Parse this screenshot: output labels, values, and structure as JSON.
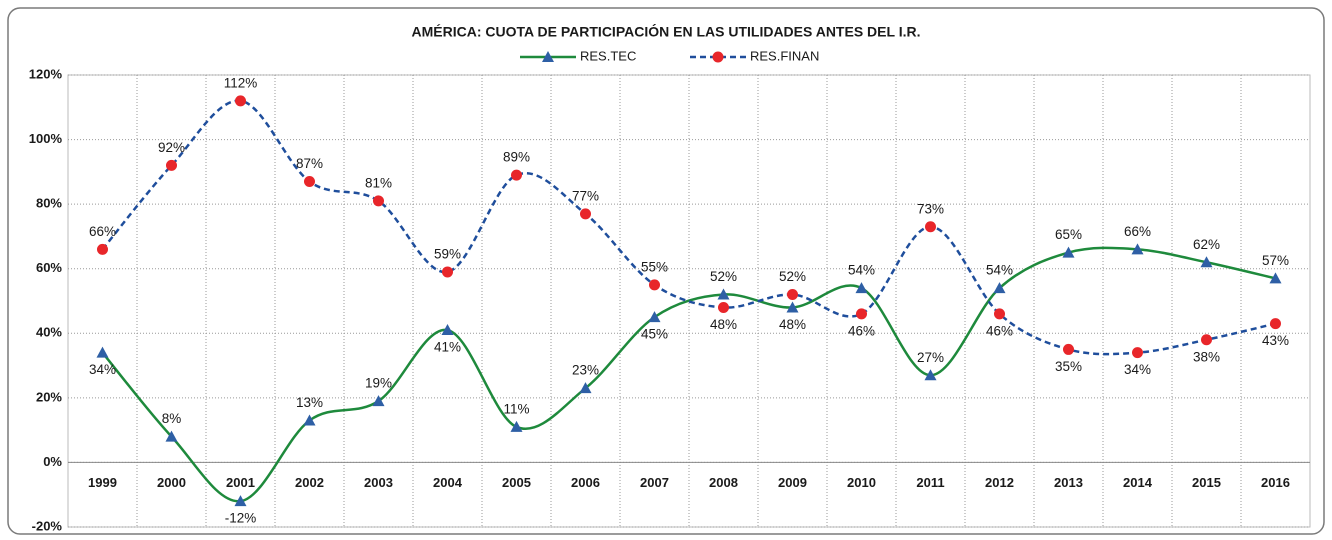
{
  "chart_data": {
    "type": "line",
    "title": "AMÉRICA: CUOTA DE PARTICIPACIÓN EN LAS UTILIDADES ANTES DEL I.R.",
    "categories": [
      "1999",
      "2000",
      "2001",
      "2002",
      "2003",
      "2004",
      "2005",
      "2006",
      "2007",
      "2008",
      "2009",
      "2010",
      "2011",
      "2012",
      "2013",
      "2014",
      "2015",
      "2016"
    ],
    "series": [
      {
        "name": "RES.TEC",
        "color": "#1e8a3c",
        "marker_color": "#2e5fa5",
        "marker": "triangle",
        "dashed": false,
        "values": [
          34,
          8,
          -12,
          13,
          19,
          41,
          11,
          23,
          45,
          52,
          48,
          54,
          27,
          54,
          65,
          66,
          62,
          57
        ],
        "value_labels": [
          "34%",
          "8%",
          "-12%",
          "13%",
          "19%",
          "41%",
          "11%",
          "23%",
          "45%",
          "52%",
          "48%",
          "54%",
          "27%",
          "54%",
          "65%",
          "66%",
          "62%",
          "57%"
        ]
      },
      {
        "name": "RES.FINAN",
        "color": "#1f4e9c",
        "marker_color": "#e8262a",
        "marker": "circle",
        "dashed": true,
        "values": [
          66,
          92,
          112,
          87,
          81,
          59,
          89,
          77,
          55,
          48,
          52,
          46,
          73,
          46,
          35,
          34,
          38,
          43
        ],
        "value_labels": [
          "66%",
          "92%",
          "112%",
          "87%",
          "81%",
          "59%",
          "89%",
          "77%",
          "55%",
          "48%",
          "52%",
          "46%",
          "73%",
          "46%",
          "35%",
          "34%",
          "38%",
          "43%"
        ]
      }
    ],
    "ylim": [
      -20,
      120
    ],
    "yticks": [
      {
        "value": -20,
        "label": "-20%"
      },
      {
        "value": 0,
        "label": "0%"
      },
      {
        "value": 20,
        "label": "20%"
      },
      {
        "value": 40,
        "label": "40%"
      },
      {
        "value": 60,
        "label": "60%"
      },
      {
        "value": 80,
        "label": "80%"
      },
      {
        "value": 100,
        "label": "100%"
      },
      {
        "value": 120,
        "label": "120%"
      }
    ],
    "grid": true,
    "smooth": true,
    "legend": "top"
  }
}
